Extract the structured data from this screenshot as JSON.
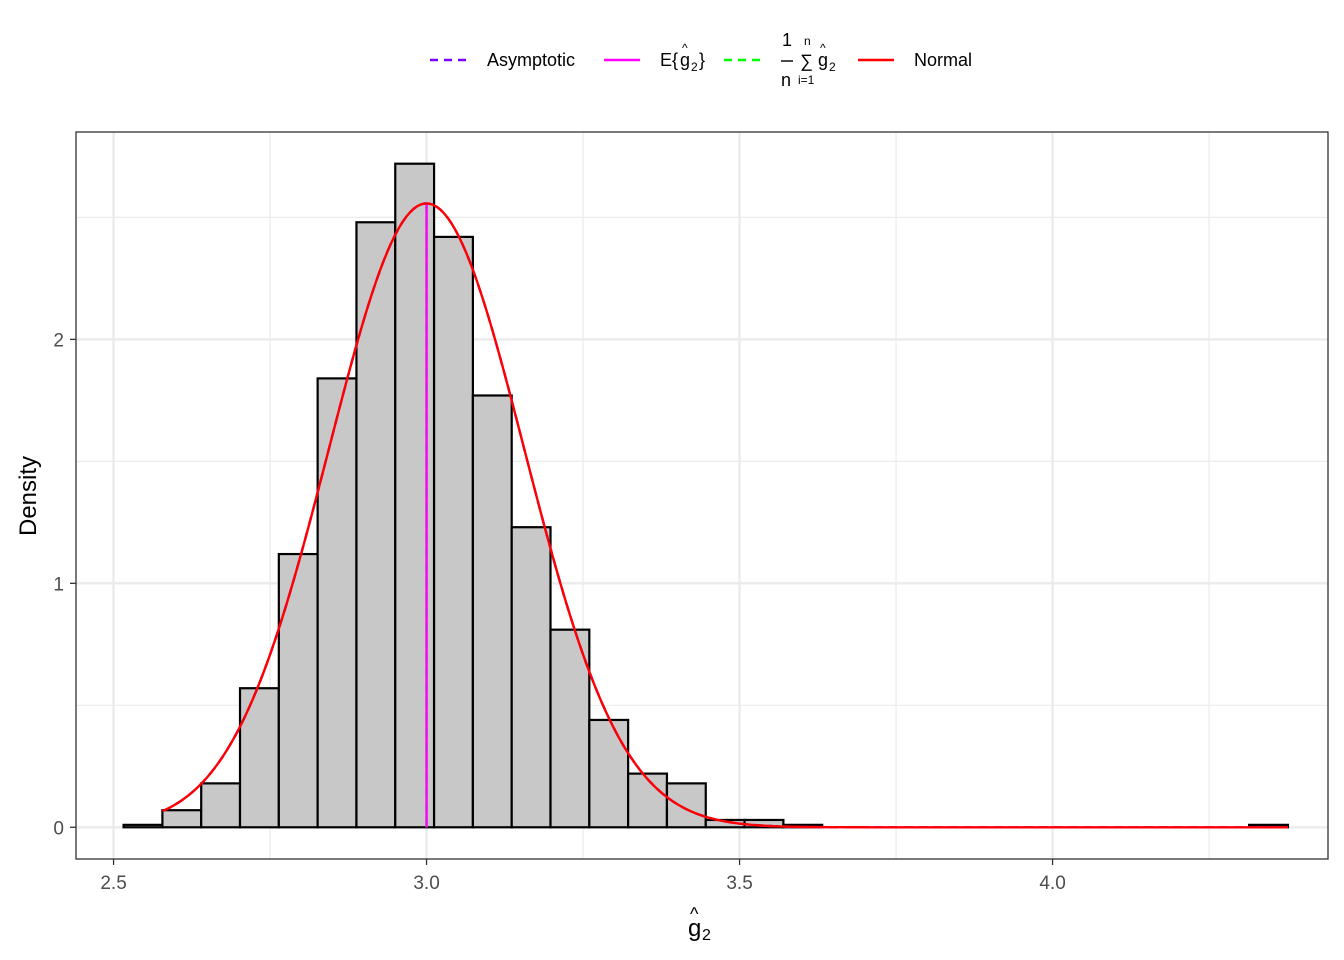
{
  "chart_data": {
    "type": "bar",
    "xlabel": "ĝ₂",
    "ylabel": "Density",
    "xlim": [
      2.44,
      4.44
    ],
    "ylim": [
      -0.13,
      2.85
    ],
    "x_ticks": [
      "2.5",
      "3.0",
      "3.5",
      "4.0"
    ],
    "y_ticks": [
      "0",
      "1",
      "2"
    ],
    "x_tick_values": [
      2.5,
      3.0,
      3.5,
      4.0
    ],
    "y_tick_values": [
      0,
      1,
      2
    ],
    "grid": true,
    "legend_position": "top",
    "histogram": {
      "bin_edges": [
        2.516,
        2.578,
        2.64,
        2.702,
        2.764,
        2.826,
        2.888,
        2.95,
        3.012,
        3.074,
        3.136,
        3.198,
        3.26,
        3.322,
        3.384,
        3.446,
        3.508,
        3.57,
        3.632,
        4.314,
        4.376
      ],
      "densities": [
        0.01,
        0.07,
        0.18,
        0.57,
        1.12,
        1.84,
        2.48,
        2.72,
        2.42,
        1.77,
        1.23,
        0.81,
        0.44,
        0.22,
        0.18,
        0.03,
        0.03,
        0.01,
        0.0,
        0.01
      ],
      "fill": "#c8c8c8",
      "stroke": "#000000"
    },
    "series": [
      {
        "name": "Asymptotic",
        "color": "#7f00ff",
        "dash": "dashed",
        "kind": "density_curve",
        "mean": 3.0,
        "sd": 0.156,
        "x_range": [
          2.578,
          4.376
        ]
      },
      {
        "name": "E{ĝ₂}",
        "color": "#ff00ff",
        "dash": "solid",
        "kind": "vertical_line",
        "x": 3.0
      },
      {
        "name": "1/n Σ ĝ₂",
        "color": "#00ff00",
        "dash": "dashed",
        "kind": "vertical_line",
        "x": 3.0
      },
      {
        "name": "Normal",
        "color": "#ff0000",
        "dash": "solid",
        "kind": "density_curve",
        "mean": 3.0,
        "sd": 0.156,
        "x_range": [
          2.578,
          4.376
        ]
      }
    ]
  },
  "legend": {
    "items": [
      {
        "label": "Asymptotic",
        "color": "#7f00ff",
        "dash": "dashed"
      },
      {
        "label_main": "E{",
        "label_g": "g",
        "label_sub": "2",
        "label_end": "}",
        "color": "#ff00ff",
        "dash": "solid"
      },
      {
        "label_num": "1",
        "label_den": "n",
        "label_sum": "∑",
        "label_top": "n",
        "label_bottom": "i=1",
        "label_g": "g",
        "label_sub": "2",
        "color": "#00ff00",
        "dash": "dashed"
      },
      {
        "label": "Normal",
        "color": "#ff0000",
        "dash": "solid"
      }
    ],
    "hat": "^"
  },
  "axes": {
    "x_title_main": "g",
    "x_title_sub": "2",
    "x_title_hat": "^",
    "y_title": "Density"
  }
}
